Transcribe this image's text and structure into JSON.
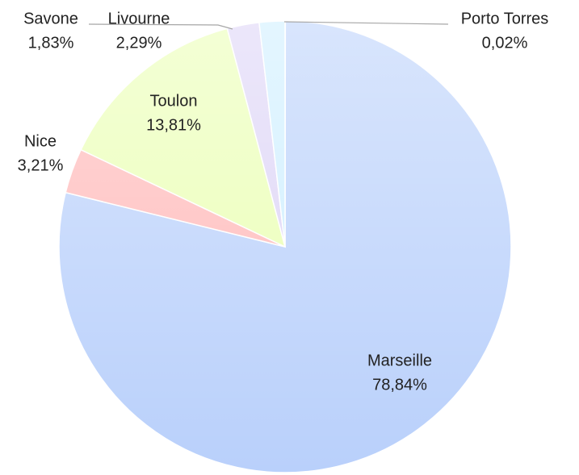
{
  "chart_data": {
    "type": "pie",
    "categories": [
      "Porto Torres",
      "Marseille",
      "Nice",
      "Toulon",
      "Livourne",
      "Savone"
    ],
    "values": [
      0.02,
      78.84,
      3.21,
      13.81,
      2.29,
      1.83
    ],
    "value_labels": [
      "0,02%",
      "78,84%",
      "3,21%",
      "13,81%",
      "2,29%",
      "1,83%"
    ],
    "colors": [
      "#cfe0fb",
      "#b9d0fb",
      "#ffb8b8",
      "#eaffb3",
      "#dcd3f6",
      "#cdeeff"
    ]
  }
}
